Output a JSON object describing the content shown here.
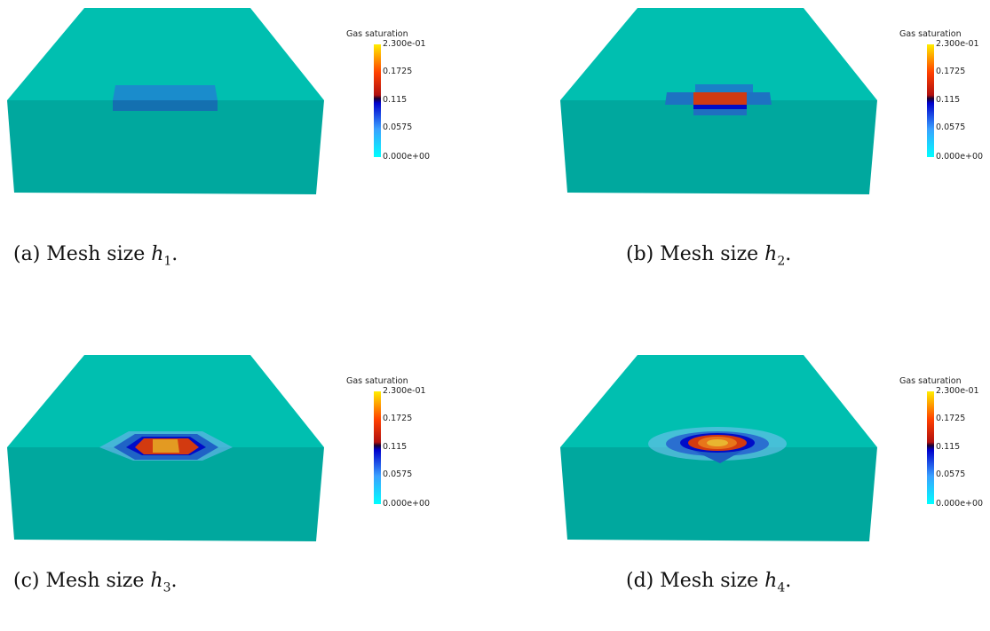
{
  "panels": [
    {
      "id": "a",
      "caption_prefix": "(a) Mesh size ",
      "h_symbol": "h",
      "h_sub": "1",
      "caption_suffix": ".",
      "colorbar": {
        "title": "Gas saturation",
        "ticks": [
          "2.300e-01",
          "0.1725",
          "0.115",
          "0.0575",
          "0.000e+00"
        ]
      }
    },
    {
      "id": "b",
      "caption_prefix": "(b) Mesh size ",
      "h_symbol": "h",
      "h_sub": "2",
      "caption_suffix": ".",
      "colorbar": {
        "title": "Gas saturation",
        "ticks": [
          "2.300e-01",
          "0.1725",
          "0.115",
          "0.0575",
          "0.000e+00"
        ]
      }
    },
    {
      "id": "c",
      "caption_prefix": "(c) Mesh size ",
      "h_symbol": "h",
      "h_sub": "3",
      "caption_suffix": ".",
      "colorbar": {
        "title": "Gas saturation",
        "ticks": [
          "2.300e-01",
          "0.1725",
          "0.115",
          "0.0575",
          "0.000e+00"
        ]
      }
    },
    {
      "id": "d",
      "caption_prefix": "(d) Mesh size ",
      "h_symbol": "h",
      "h_sub": "4",
      "caption_suffix": ".",
      "colorbar": {
        "title": "Gas saturation",
        "ticks": [
          "2.300e-01",
          "0.1725",
          "0.115",
          "0.0575",
          "0.000e+00"
        ]
      }
    }
  ],
  "colors": {
    "block_top": "#00bfb0",
    "block_front": "#00a89e",
    "plume_low": "#1c7fc9",
    "plume_mid": "#000cc8",
    "plume_high": "#d23a10",
    "plume_peak": "#e8a21a"
  }
}
